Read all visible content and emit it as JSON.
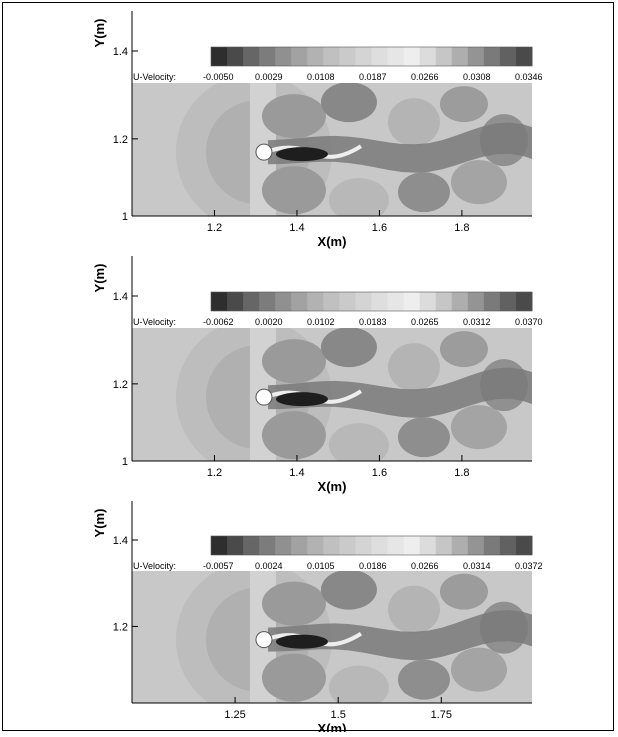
{
  "chart_data": [
    {
      "type": "heatmap",
      "colorbar_label": "U-Velocity:",
      "colorbar_ticks": [
        "-0.0050",
        "0.0029",
        "0.0108",
        "0.0187",
        "0.0266",
        "0.0308",
        "0.0346"
      ],
      "xlabel": "X(m)",
      "ylabel": "Y(m)",
      "x_ticks": [
        "1.2",
        "1.4",
        "1.6",
        "1.8"
      ],
      "x_tick_values": [
        1.2,
        1.4,
        1.6,
        1.8
      ],
      "y_ticks": [
        "1",
        "1.2",
        "1.4"
      ],
      "y_tick_values": [
        1.0,
        1.2,
        1.4
      ],
      "xlim": [
        1.0,
        1.97
      ],
      "ylim": [
        1.0,
        1.48
      ],
      "cylinder": {
        "x": 1.32,
        "y": 1.16
      }
    },
    {
      "type": "heatmap",
      "colorbar_label": "U-Velocity:",
      "colorbar_ticks": [
        "-0.0062",
        "0.0020",
        "0.0102",
        "0.0183",
        "0.0265",
        "0.0312",
        "0.0370"
      ],
      "xlabel": "X(m)",
      "ylabel": "Y(m)",
      "x_ticks": [
        "1.2",
        "1.4",
        "1.6",
        "1.8"
      ],
      "x_tick_values": [
        1.2,
        1.4,
        1.6,
        1.8
      ],
      "y_ticks": [
        "1",
        "1.2",
        "1.4"
      ],
      "y_tick_values": [
        1.0,
        1.2,
        1.4
      ],
      "xlim": [
        1.0,
        1.97
      ],
      "ylim": [
        1.0,
        1.48
      ],
      "cylinder": {
        "x": 1.32,
        "y": 1.16
      }
    },
    {
      "type": "heatmap",
      "colorbar_label": "U-Velocity:",
      "colorbar_ticks": [
        "-0.0057",
        "0.0024",
        "0.0105",
        "0.0186",
        "0.0266",
        "0.0314",
        "0.0372"
      ],
      "xlabel": "X(m)",
      "ylabel": "Y(m)",
      "x_ticks": [
        "1.25",
        "1.5",
        "1.75"
      ],
      "x_tick_values": [
        1.25,
        1.5,
        1.75
      ],
      "y_ticks": [
        "1.2",
        "1.4"
      ],
      "y_tick_values": [
        1.2,
        1.4
      ],
      "xlim": [
        1.0,
        1.97
      ],
      "ylim": [
        1.0,
        1.48
      ],
      "cylinder": {
        "x": 1.32,
        "y": 1.16
      }
    }
  ]
}
